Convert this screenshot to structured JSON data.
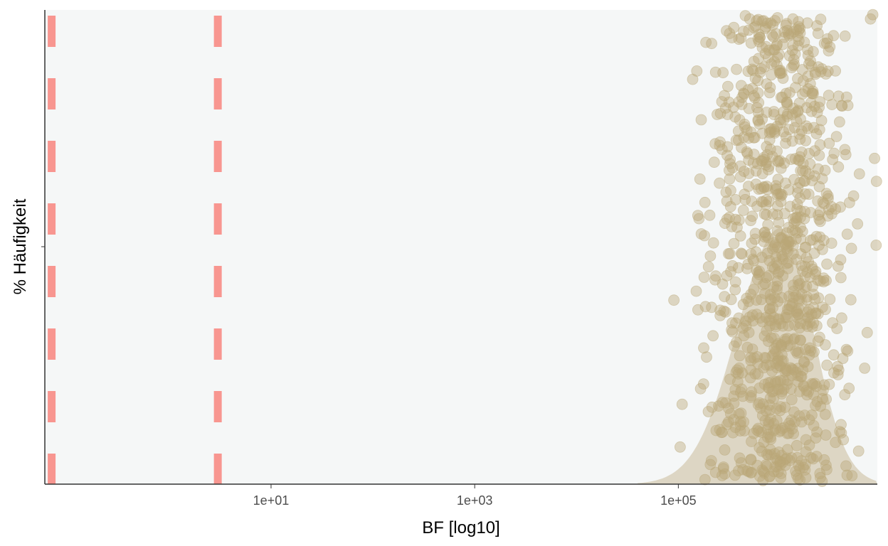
{
  "chart_data": {
    "type": "scatter",
    "xlabel": "BF [log10]",
    "ylabel": "% Häufigkeit",
    "x_scale": "log10",
    "xlim": [
      0.06,
      9000000
    ],
    "x_ticks": [
      {
        "value": 10,
        "label": "1e+01"
      },
      {
        "value": 1000,
        "label": "1e+03"
      },
      {
        "value": 100000,
        "label": "1e+05"
      }
    ],
    "reference_lines": [
      {
        "x": 0.07,
        "style": "dashed",
        "color": "#f8766d"
      },
      {
        "x": 3,
        "style": "dashed",
        "color": "#f8766d"
      }
    ],
    "points": {
      "count": 1000,
      "x_range": [
        90000,
        9000000
      ],
      "x_peak": 1000000,
      "color": "#b9a878",
      "jitter": "vertical random"
    },
    "density": {
      "fill": "#ddd6c4",
      "x_peak": 1000000
    },
    "grid": false,
    "legend": "none",
    "background": "#f5f7f7"
  }
}
